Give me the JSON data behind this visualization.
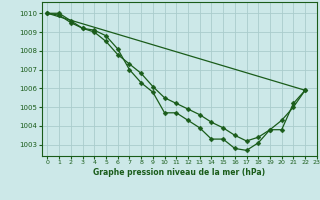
{
  "bg_color": "#cce8e8",
  "grid_color": "#aacccc",
  "line_color": "#1a5c1a",
  "xlabel": "Graphe pression niveau de la mer (hPa)",
  "xlim": [
    -0.5,
    23
  ],
  "ylim": [
    1002.4,
    1010.6
  ],
  "yticks": [
    1003,
    1004,
    1005,
    1006,
    1007,
    1008,
    1009,
    1010
  ],
  "xticks": [
    0,
    1,
    2,
    3,
    4,
    5,
    6,
    7,
    8,
    9,
    10,
    11,
    12,
    13,
    14,
    15,
    16,
    17,
    18,
    19,
    20,
    21,
    22,
    23
  ],
  "series": [
    {
      "x": [
        0,
        1,
        2,
        3,
        4,
        5,
        6,
        7,
        8,
        9,
        10,
        11,
        12,
        13,
        14,
        15,
        16,
        17,
        18,
        19,
        20,
        21,
        22
      ],
      "y": [
        1010.0,
        1010.0,
        1009.6,
        1009.2,
        1009.1,
        1008.8,
        1008.1,
        1007.0,
        1006.3,
        1005.8,
        1004.7,
        1004.7,
        1004.3,
        1003.9,
        1003.3,
        1003.3,
        1002.8,
        1002.7,
        1003.1,
        1003.8,
        1003.8,
        1005.2,
        1005.9
      ]
    },
    {
      "x": [
        0,
        1,
        2,
        3,
        4,
        5,
        6,
        7,
        8,
        9,
        10,
        11,
        12,
        13,
        14,
        15,
        16,
        17,
        18,
        19,
        20,
        21,
        22
      ],
      "y": [
        1010.0,
        1009.9,
        1009.5,
        1009.2,
        1009.0,
        1008.5,
        1007.8,
        1007.3,
        1006.8,
        1006.1,
        1005.5,
        1005.2,
        1004.9,
        1004.6,
        1004.2,
        1003.9,
        1003.5,
        1003.2,
        1003.4,
        1003.8,
        1004.3,
        1005.0,
        1005.9
      ]
    },
    {
      "x": [
        0,
        22
      ],
      "y": [
        1010.0,
        1005.9
      ]
    }
  ]
}
